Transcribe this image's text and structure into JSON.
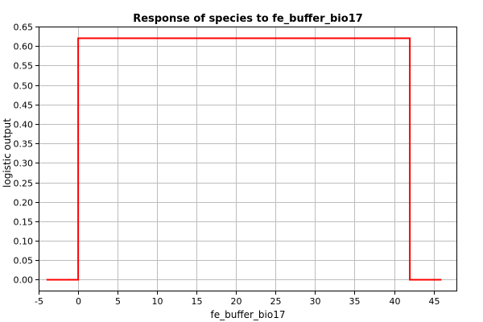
{
  "chart_data": {
    "type": "line",
    "title": "Response of species to fe_buffer_bio17",
    "xlabel": "fe_buffer_bio17",
    "ylabel": "logistic output",
    "xlim": [
      -5,
      48
    ],
    "ylim": [
      -0.03,
      0.65
    ],
    "x_ticks": [
      -5,
      0,
      5,
      10,
      15,
      20,
      25,
      30,
      35,
      40,
      45
    ],
    "y_ticks": [
      0.0,
      0.05,
      0.1,
      0.15,
      0.2,
      0.25,
      0.3,
      0.35,
      0.4,
      0.45,
      0.5,
      0.55,
      0.6,
      0.65
    ],
    "grid": true,
    "series": [
      {
        "color": "#ff0000",
        "x": [
          -4,
          0,
          0,
          42,
          42,
          46
        ],
        "y": [
          0.0,
          0.0,
          0.62,
          0.62,
          0.0,
          0.0
        ]
      }
    ]
  }
}
